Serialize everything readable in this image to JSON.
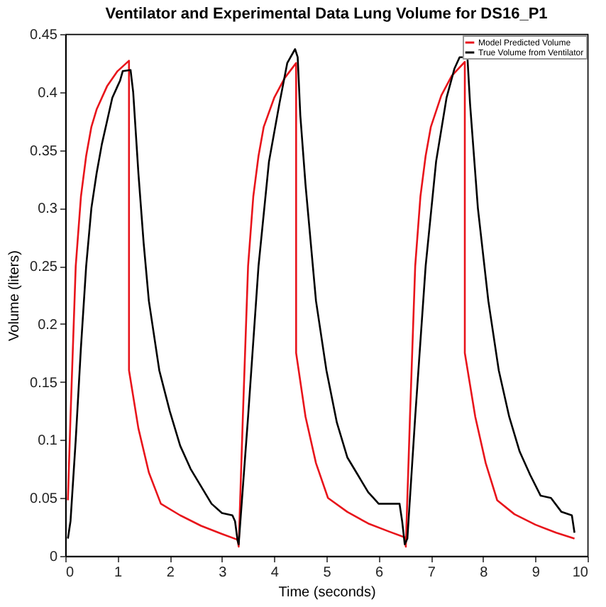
{
  "chart_data": {
    "type": "line",
    "title": "Ventilator and Experimental Data Lung Volume for DS16_P1",
    "xlabel": "Time (seconds)",
    "ylabel": "Volume (liters)",
    "xlim": [
      0,
      10
    ],
    "xticks": [
      0,
      1,
      2,
      3,
      4,
      5,
      6,
      7,
      8,
      9,
      10
    ],
    "ylim": [
      0,
      0.45
    ],
    "yticks": [
      0,
      0.05,
      0.1,
      0.15,
      0.2,
      0.25,
      0.3,
      0.35,
      0.4,
      0.45
    ],
    "grid": false,
    "legend": "top right",
    "marker": "none",
    "line_style": "solid",
    "series": [
      {
        "name": "Model Predicted Volume",
        "color": "#e8141b",
        "x": [
          0.05,
          0.1,
          0.2,
          0.3,
          0.4,
          0.5,
          0.6,
          0.8,
          1.0,
          1.22,
          1.22,
          1.4,
          1.6,
          1.83,
          2.2,
          2.6,
          3.0,
          3.3,
          3.32,
          3.4,
          3.5,
          3.6,
          3.7,
          3.8,
          4.0,
          4.2,
          4.42,
          4.42,
          4.6,
          4.8,
          5.03,
          5.4,
          5.8,
          6.2,
          6.5,
          6.52,
          6.6,
          6.7,
          6.8,
          6.9,
          7.0,
          7.2,
          7.4,
          7.65,
          7.65,
          7.85,
          8.05,
          8.27,
          8.6,
          9.0,
          9.4,
          9.75
        ],
        "values": [
          0.048,
          0.12,
          0.25,
          0.31,
          0.345,
          0.37,
          0.385,
          0.405,
          0.418,
          0.427,
          0.16,
          0.11,
          0.072,
          0.045,
          0.035,
          0.026,
          0.019,
          0.014,
          0.008,
          0.12,
          0.25,
          0.31,
          0.345,
          0.37,
          0.395,
          0.412,
          0.425,
          0.175,
          0.12,
          0.08,
          0.05,
          0.038,
          0.028,
          0.021,
          0.016,
          0.008,
          0.12,
          0.25,
          0.31,
          0.345,
          0.37,
          0.397,
          0.414,
          0.426,
          0.175,
          0.12,
          0.08,
          0.048,
          0.036,
          0.027,
          0.02,
          0.015
        ]
      },
      {
        "name": "True Volume from Ventilator",
        "color": "#000000",
        "x": [
          0.05,
          0.1,
          0.2,
          0.3,
          0.4,
          0.5,
          0.6,
          0.7,
          0.8,
          0.9,
          1.0,
          1.05,
          1.1,
          1.25,
          1.3,
          1.4,
          1.5,
          1.6,
          1.8,
          2.0,
          2.2,
          2.4,
          2.6,
          2.8,
          3.0,
          3.2,
          3.25,
          3.3,
          3.32,
          3.5,
          3.7,
          3.9,
          4.1,
          4.25,
          4.4,
          4.45,
          4.5,
          4.6,
          4.8,
          5.0,
          5.2,
          5.4,
          5.6,
          5.8,
          5.9,
          6.0,
          6.4,
          6.45,
          6.5,
          6.55,
          6.7,
          6.9,
          7.1,
          7.3,
          7.45,
          7.55,
          7.7,
          7.75,
          7.9,
          8.1,
          8.3,
          8.5,
          8.7,
          8.9,
          9.1,
          9.3,
          9.5,
          9.7,
          9.75
        ],
        "values": [
          0.015,
          0.03,
          0.1,
          0.18,
          0.25,
          0.3,
          0.33,
          0.355,
          0.375,
          0.395,
          0.405,
          0.41,
          0.418,
          0.419,
          0.4,
          0.33,
          0.27,
          0.22,
          0.16,
          0.125,
          0.095,
          0.075,
          0.06,
          0.045,
          0.037,
          0.035,
          0.03,
          0.013,
          0.01,
          0.12,
          0.25,
          0.34,
          0.39,
          0.425,
          0.437,
          0.43,
          0.38,
          0.32,
          0.22,
          0.16,
          0.115,
          0.085,
          0.07,
          0.055,
          0.05,
          0.045,
          0.045,
          0.03,
          0.01,
          0.015,
          0.12,
          0.25,
          0.34,
          0.395,
          0.42,
          0.43,
          0.43,
          0.39,
          0.3,
          0.22,
          0.16,
          0.12,
          0.09,
          0.07,
          0.052,
          0.05,
          0.038,
          0.035,
          0.02
        ]
      }
    ]
  }
}
